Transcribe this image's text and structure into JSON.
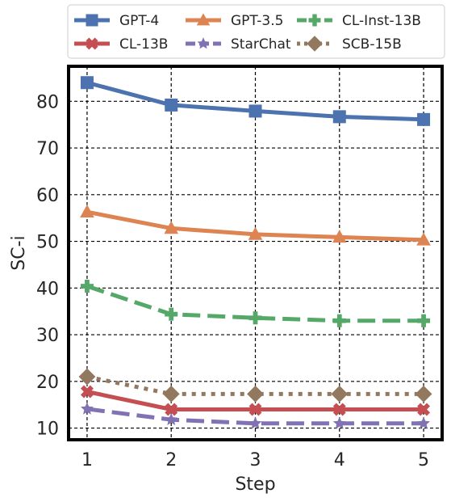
{
  "chart_data": {
    "type": "line",
    "xlabel": "Step",
    "ylabel": "SC-i",
    "x": [
      1,
      2,
      3,
      4,
      5
    ],
    "xlim": [
      0.78,
      5.22
    ],
    "ylim": [
      7.5,
      87.5
    ],
    "yticks": [
      10,
      20,
      30,
      40,
      50,
      60,
      70,
      80
    ],
    "grid": true,
    "legend_position": "top",
    "series": [
      {
        "name": "GPT-4",
        "color": "#4c72b0",
        "marker": "square",
        "dash": "solid",
        "values": [
          84.0,
          79.2,
          77.9,
          76.7,
          76.1
        ]
      },
      {
        "name": "GPT-3.5",
        "color": "#dd8452",
        "marker": "triangle",
        "dash": "solid",
        "values": [
          56.3,
          52.8,
          51.5,
          50.9,
          50.3
        ]
      },
      {
        "name": "CL-Inst-13B",
        "color": "#55a868",
        "marker": "plus",
        "dash": "dashed",
        "values": [
          40.4,
          34.4,
          33.6,
          33.0,
          33.0
        ]
      },
      {
        "name": "CL-13B",
        "color": "#c44e52",
        "marker": "x",
        "dash": "solid",
        "values": [
          17.8,
          14.0,
          14.0,
          14.0,
          14.0
        ]
      },
      {
        "name": "StarChat",
        "color": "#8172b3",
        "marker": "star",
        "dash": "dashed",
        "values": [
          14.1,
          11.8,
          11.0,
          11.0,
          11.0
        ]
      },
      {
        "name": "SCB-15B",
        "color": "#937860",
        "marker": "diamond",
        "dash": "dotted",
        "values": [
          21.0,
          17.3,
          17.3,
          17.3,
          17.3
        ]
      }
    ]
  }
}
